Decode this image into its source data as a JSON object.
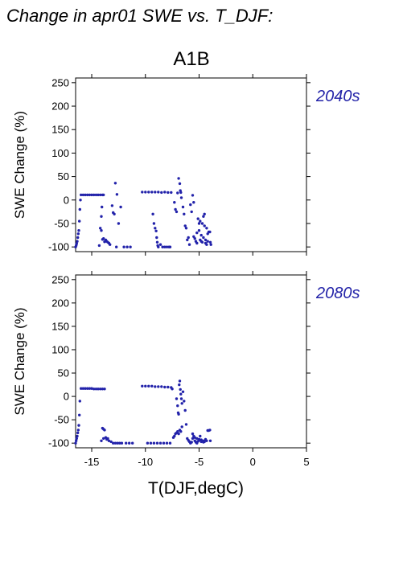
{
  "figure": {
    "title": "Change in apr01 SWE vs. T_DJF:",
    "scenario": "A1B"
  },
  "chart_data": [
    {
      "type": "scatter",
      "period_label": "2040s",
      "xlabel": "",
      "ylabel": "SWE Change (%)",
      "xlim": [
        -16.5,
        5
      ],
      "ylim": [
        -110,
        260
      ],
      "xticks": [
        -15,
        -10,
        -5,
        0,
        5
      ],
      "yticks": [
        -100,
        -50,
        0,
        50,
        100,
        150,
        200,
        250
      ],
      "show_x_tick_labels": false,
      "color": "#2222aa",
      "points": [
        [
          -16.5,
          -100
        ],
        [
          -16.45,
          -97
        ],
        [
          -16.4,
          -93
        ],
        [
          -16.35,
          -88
        ],
        [
          -16.3,
          -80
        ],
        [
          -16.25,
          -72
        ],
        [
          -16.2,
          -65
        ],
        [
          -16.15,
          -45
        ],
        [
          -16.1,
          -20
        ],
        [
          -16.05,
          0
        ],
        [
          -16.0,
          11
        ],
        [
          -15.8,
          11
        ],
        [
          -15.6,
          11
        ],
        [
          -15.4,
          11
        ],
        [
          -15.2,
          11
        ],
        [
          -15.0,
          11
        ],
        [
          -14.8,
          11
        ],
        [
          -14.6,
          11
        ],
        [
          -14.4,
          11
        ],
        [
          -14.2,
          11
        ],
        [
          -14.0,
          11
        ],
        [
          -13.9,
          11
        ],
        [
          -14.2,
          -60
        ],
        [
          -14.1,
          -65
        ],
        [
          -14.0,
          -84
        ],
        [
          -13.9,
          -82
        ],
        [
          -13.8,
          -89
        ],
        [
          -13.7,
          -85
        ],
        [
          -13.6,
          -88
        ],
        [
          -13.5,
          -90
        ],
        [
          -13.4,
          -92
        ],
        [
          -13.3,
          -95
        ],
        [
          -14.3,
          -97
        ],
        [
          -14.05,
          -15
        ],
        [
          -14.1,
          -35
        ],
        [
          -13.1,
          -12
        ],
        [
          -13.0,
          -27
        ],
        [
          -12.9,
          -30
        ],
        [
          -12.7,
          -100
        ],
        [
          -12.8,
          36
        ],
        [
          -12.65,
          12
        ],
        [
          -12.5,
          -50
        ],
        [
          -12.3,
          -15
        ],
        [
          -12.0,
          -100
        ],
        [
          -11.7,
          -100
        ],
        [
          -11.4,
          -100
        ],
        [
          -10.3,
          17
        ],
        [
          -10.0,
          17
        ],
        [
          -9.7,
          17
        ],
        [
          -9.4,
          17
        ],
        [
          -9.1,
          17
        ],
        [
          -8.8,
          17
        ],
        [
          -8.5,
          16
        ],
        [
          -8.2,
          17
        ],
        [
          -7.9,
          16
        ],
        [
          -7.6,
          16
        ],
        [
          -9.3,
          -30
        ],
        [
          -9.2,
          -50
        ],
        [
          -9.1,
          -60
        ],
        [
          -9.0,
          -66
        ],
        [
          -8.95,
          -80
        ],
        [
          -8.9,
          -90
        ],
        [
          -8.85,
          -97
        ],
        [
          -8.8,
          -100
        ],
        [
          -8.6,
          -95
        ],
        [
          -8.4,
          -100
        ],
        [
          -8.2,
          -100
        ],
        [
          -8.0,
          -100
        ],
        [
          -7.8,
          -100
        ],
        [
          -7.7,
          -100
        ],
        [
          -7.3,
          -5
        ],
        [
          -7.2,
          -20
        ],
        [
          -7.1,
          -25
        ],
        [
          -7.0,
          15
        ],
        [
          -6.9,
          46
        ],
        [
          -6.8,
          35
        ],
        [
          -6.75,
          20
        ],
        [
          -6.7,
          16
        ],
        [
          -6.65,
          5
        ],
        [
          -6.5,
          -15
        ],
        [
          -6.4,
          -30
        ],
        [
          -6.3,
          -55
        ],
        [
          -6.2,
          -60
        ],
        [
          -6.1,
          -85
        ],
        [
          -6.0,
          -80
        ],
        [
          -5.9,
          -95
        ],
        [
          -5.8,
          -10
        ],
        [
          -5.7,
          -25
        ],
        [
          -5.6,
          10
        ],
        [
          -5.5,
          -5
        ],
        [
          -5.5,
          -78
        ],
        [
          -5.4,
          -82
        ],
        [
          -5.3,
          -88
        ],
        [
          -5.2,
          -92
        ],
        [
          -5.1,
          -40
        ],
        [
          -5.0,
          -50
        ],
        [
          -4.9,
          -85
        ],
        [
          -4.8,
          -88
        ],
        [
          -4.7,
          -90
        ],
        [
          -4.6,
          -35
        ],
        [
          -4.5,
          -30
        ],
        [
          -4.4,
          -92
        ],
        [
          -4.3,
          -95
        ],
        [
          -4.2,
          -72
        ],
        [
          -4.1,
          -68
        ],
        [
          -4.0,
          -68
        ],
        [
          -3.95,
          -90
        ],
        [
          -3.9,
          -95
        ],
        [
          -4.9,
          -45
        ],
        [
          -4.7,
          -50
        ],
        [
          -4.5,
          -55
        ],
        [
          -4.3,
          -60
        ],
        [
          -5.2,
          -70
        ],
        [
          -5.0,
          -65
        ],
        [
          -4.8,
          -75
        ],
        [
          -4.6,
          -80
        ],
        [
          -4.4,
          -85
        ],
        [
          -4.2,
          -88
        ]
      ]
    },
    {
      "type": "scatter",
      "period_label": "2080s",
      "xlabel": "T(DJF,degC)",
      "ylabel": "SWE Change (%)",
      "xlim": [
        -16.5,
        5
      ],
      "ylim": [
        -110,
        260
      ],
      "xticks": [
        -15,
        -10,
        -5,
        0,
        5
      ],
      "yticks": [
        -100,
        -50,
        0,
        50,
        100,
        150,
        200,
        250
      ],
      "show_x_tick_labels": true,
      "color": "#2222aa",
      "points": [
        [
          -16.5,
          -100
        ],
        [
          -16.45,
          -95
        ],
        [
          -16.4,
          -90
        ],
        [
          -16.35,
          -85
        ],
        [
          -16.3,
          -78
        ],
        [
          -16.25,
          -72
        ],
        [
          -16.2,
          -62
        ],
        [
          -16.15,
          -40
        ],
        [
          -16.1,
          -10
        ],
        [
          -16.0,
          17
        ],
        [
          -15.8,
          17
        ],
        [
          -15.6,
          17
        ],
        [
          -15.4,
          17
        ],
        [
          -15.2,
          17
        ],
        [
          -15.0,
          17
        ],
        [
          -14.8,
          16
        ],
        [
          -14.6,
          16
        ],
        [
          -14.4,
          16
        ],
        [
          -14.2,
          16
        ],
        [
          -14.0,
          16
        ],
        [
          -13.8,
          16
        ],
        [
          -14.0,
          -68
        ],
        [
          -13.9,
          -70
        ],
        [
          -13.8,
          -72
        ],
        [
          -14.1,
          -95
        ],
        [
          -13.9,
          -90
        ],
        [
          -13.7,
          -88
        ],
        [
          -13.6,
          -92
        ],
        [
          -13.5,
          -90
        ],
        [
          -13.4,
          -95
        ],
        [
          -13.2,
          -97
        ],
        [
          -13.0,
          -100
        ],
        [
          -12.8,
          -100
        ],
        [
          -12.6,
          -100
        ],
        [
          -12.4,
          -100
        ],
        [
          -12.2,
          -100
        ],
        [
          -11.8,
          -100
        ],
        [
          -11.5,
          -100
        ],
        [
          -11.2,
          -100
        ],
        [
          -10.3,
          22
        ],
        [
          -10.0,
          22
        ],
        [
          -9.7,
          22
        ],
        [
          -9.4,
          22
        ],
        [
          -9.1,
          21
        ],
        [
          -8.8,
          21
        ],
        [
          -8.5,
          21
        ],
        [
          -8.2,
          20
        ],
        [
          -7.9,
          20
        ],
        [
          -7.6,
          19
        ],
        [
          -7.5,
          16
        ],
        [
          -9.8,
          -100
        ],
        [
          -9.5,
          -100
        ],
        [
          -9.2,
          -100
        ],
        [
          -8.9,
          -100
        ],
        [
          -8.6,
          -100
        ],
        [
          -8.3,
          -100
        ],
        [
          -8.0,
          -100
        ],
        [
          -7.7,
          -100
        ],
        [
          -7.4,
          -88
        ],
        [
          -7.3,
          -85
        ],
        [
          -7.2,
          -80
        ],
        [
          -7.1,
          -78
        ],
        [
          -7.0,
          -75
        ],
        [
          -6.9,
          -80
        ],
        [
          -6.8,
          -72
        ],
        [
          -6.7,
          -75
        ],
        [
          -6.6,
          -65
        ],
        [
          -7.1,
          -5
        ],
        [
          -7.0,
          -20
        ],
        [
          -6.95,
          -35
        ],
        [
          -6.9,
          -38
        ],
        [
          -6.85,
          25
        ],
        [
          -6.8,
          33
        ],
        [
          -6.75,
          15
        ],
        [
          -6.7,
          5
        ],
        [
          -6.65,
          -5
        ],
        [
          -6.6,
          -15
        ],
        [
          -6.5,
          10
        ],
        [
          -6.4,
          -10
        ],
        [
          -6.3,
          -30
        ],
        [
          -6.2,
          -60
        ],
        [
          -6.1,
          -90
        ],
        [
          -6.0,
          -94
        ],
        [
          -5.9,
          -97
        ],
        [
          -5.8,
          -100
        ],
        [
          -5.7,
          -98
        ],
        [
          -5.6,
          -90
        ],
        [
          -5.5,
          -85
        ],
        [
          -5.4,
          -95
        ],
        [
          -5.3,
          -98
        ],
        [
          -5.2,
          -100
        ],
        [
          -5.1,
          -96
        ],
        [
          -5.0,
          -92
        ],
        [
          -4.9,
          -85
        ],
        [
          -4.8,
          -93
        ],
        [
          -4.7,
          -96
        ],
        [
          -4.6,
          -95
        ],
        [
          -4.5,
          -97
        ],
        [
          -4.4,
          -92
        ],
        [
          -4.3,
          -95
        ],
        [
          -4.2,
          -73
        ],
        [
          -4.1,
          -73
        ],
        [
          -4.0,
          -72
        ],
        [
          -3.95,
          -95
        ],
        [
          -5.6,
          -80
        ],
        [
          -5.4,
          -88
        ],
        [
          -5.2,
          -90
        ],
        [
          -5.0,
          -94
        ],
        [
          -4.8,
          -97
        ],
        [
          -4.6,
          -98
        ]
      ]
    }
  ]
}
